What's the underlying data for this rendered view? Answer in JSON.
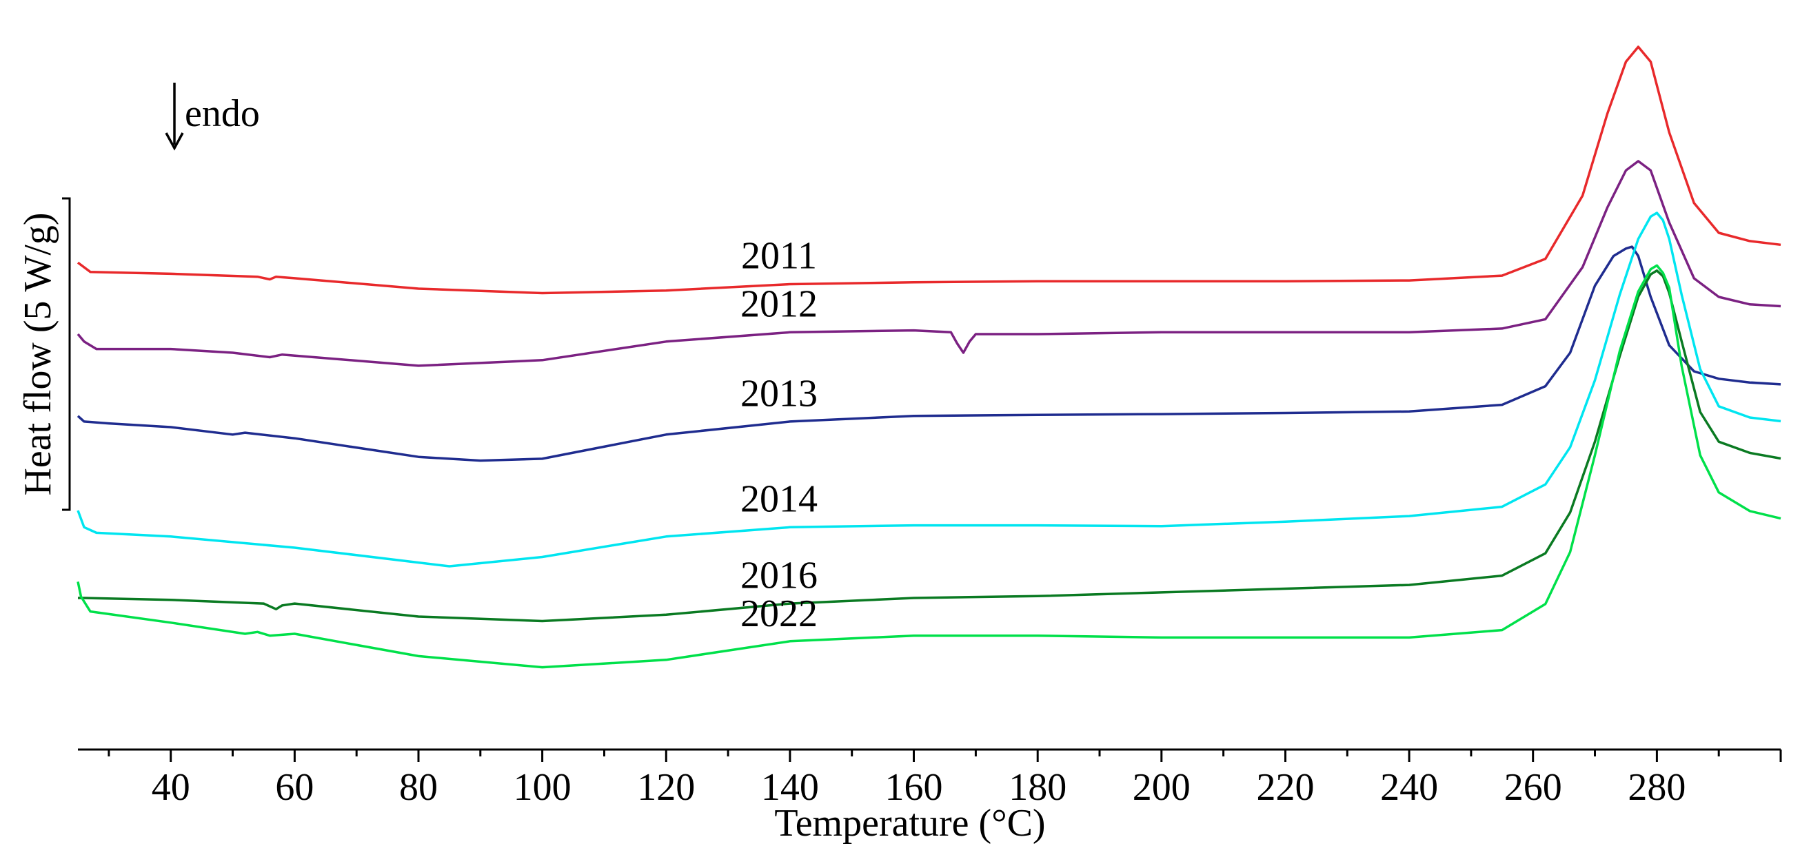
{
  "chart_data": {
    "type": "line",
    "xlabel": "Temperature (°C)",
    "ylabel": "Heat flow (5 W/g)",
    "xlim": [
      25,
      300
    ],
    "x_ticks": [
      "40",
      "60",
      "80",
      "100",
      "120",
      "140",
      "160",
      "180",
      "200",
      "220",
      "240",
      "260",
      "280"
    ],
    "annotation": "endo",
    "grid": false,
    "legend": "none",
    "series": [
      {
        "name": "2011",
        "color": "#e8292b",
        "x": [
          25,
          27,
          40,
          54,
          56,
          57,
          60,
          80,
          100,
          120,
          140,
          160,
          180,
          200,
          220,
          240,
          255,
          262,
          268,
          272,
          275,
          277,
          279,
          282,
          286,
          290,
          295,
          300
        ],
        "y": [
          0.2,
          -0.05,
          -0.1,
          -0.18,
          -0.25,
          -0.18,
          -0.22,
          -0.5,
          -0.62,
          -0.55,
          -0.38,
          -0.33,
          -0.3,
          -0.3,
          -0.3,
          -0.28,
          -0.15,
          0.3,
          2.0,
          4.2,
          5.6,
          6.0,
          5.6,
          3.7,
          1.8,
          1.0,
          0.78,
          0.68
        ]
      },
      {
        "name": "2012",
        "color": "#7b2182",
        "x": [
          25,
          26,
          28,
          40,
          50,
          56,
          58,
          80,
          100,
          120,
          140,
          160,
          166,
          167,
          168,
          169,
          170,
          180,
          200,
          220,
          240,
          255,
          262,
          268,
          272,
          275,
          277,
          279,
          282,
          286,
          290,
          295,
          300
        ],
        "y": [
          0.5,
          0.3,
          0.1,
          0.1,
          0.0,
          -0.12,
          -0.05,
          -0.35,
          -0.2,
          0.3,
          0.55,
          0.6,
          0.55,
          0.25,
          0.0,
          0.3,
          0.5,
          0.5,
          0.55,
          0.55,
          0.55,
          0.65,
          0.9,
          2.3,
          3.9,
          4.9,
          5.15,
          4.9,
          3.5,
          2.0,
          1.5,
          1.3,
          1.25
        ]
      },
      {
        "name": "2013",
        "color": "#1f2c8f",
        "x": [
          25,
          26,
          30,
          40,
          50,
          52,
          60,
          80,
          90,
          100,
          120,
          140,
          160,
          180,
          200,
          220,
          240,
          255,
          262,
          266,
          270,
          273,
          275,
          276,
          277,
          279,
          282,
          286,
          290,
          295,
          300
        ],
        "y": [
          0.3,
          0.15,
          0.1,
          0.0,
          -0.2,
          -0.15,
          -0.3,
          -0.8,
          -0.9,
          -0.85,
          -0.2,
          0.15,
          0.3,
          0.33,
          0.35,
          0.38,
          0.42,
          0.6,
          1.1,
          2.0,
          3.8,
          4.6,
          4.8,
          4.85,
          4.6,
          3.5,
          2.2,
          1.5,
          1.3,
          1.2,
          1.15
        ]
      },
      {
        "name": "2014",
        "color": "#00e5f0",
        "x": [
          25,
          26,
          28,
          40,
          60,
          85,
          100,
          120,
          140,
          160,
          180,
          200,
          220,
          240,
          255,
          262,
          266,
          270,
          274,
          277,
          279,
          280,
          281,
          282,
          284,
          287,
          290,
          295,
          300
        ],
        "y": [
          1.0,
          0.55,
          0.4,
          0.3,
          0.0,
          -0.5,
          -0.25,
          0.3,
          0.55,
          0.6,
          0.6,
          0.58,
          0.7,
          0.85,
          1.1,
          1.7,
          2.7,
          4.5,
          6.8,
          8.3,
          8.9,
          9.0,
          8.8,
          8.3,
          6.8,
          4.8,
          3.8,
          3.5,
          3.4
        ]
      },
      {
        "name": "2016",
        "color": "#0a7a22",
        "x": [
          25,
          26,
          40,
          55,
          57,
          58,
          60,
          80,
          100,
          120,
          140,
          160,
          180,
          200,
          220,
          240,
          255,
          262,
          266,
          270,
          274,
          277,
          279,
          280,
          281,
          282,
          284,
          287,
          290,
          295,
          300
        ],
        "y": [
          0.0,
          0.0,
          -0.05,
          -0.15,
          -0.3,
          -0.2,
          -0.15,
          -0.5,
          -0.62,
          -0.45,
          -0.15,
          0.0,
          0.05,
          0.15,
          0.25,
          0.35,
          0.6,
          1.2,
          2.3,
          4.2,
          6.5,
          8.1,
          8.7,
          8.8,
          8.65,
          8.2,
          6.9,
          5.0,
          4.2,
          3.9,
          3.75
        ]
      },
      {
        "name": "2022",
        "color": "#00e04a",
        "x": [
          25,
          25.5,
          27,
          40,
          52,
          54,
          56,
          60,
          80,
          100,
          120,
          140,
          160,
          180,
          200,
          220,
          240,
          255,
          262,
          266,
          270,
          274,
          277,
          279,
          280,
          281,
          282,
          284,
          287,
          290,
          295,
          300
        ],
        "y": [
          1.4,
          1.0,
          0.6,
          0.3,
          0.0,
          0.05,
          -0.05,
          0.0,
          -0.6,
          -0.9,
          -0.7,
          -0.2,
          -0.05,
          -0.05,
          -0.1,
          -0.1,
          -0.1,
          0.1,
          0.8,
          2.2,
          4.8,
          7.6,
          9.2,
          9.8,
          9.9,
          9.7,
          9.3,
          7.2,
          4.8,
          3.8,
          3.3,
          3.1
        ]
      }
    ]
  }
}
